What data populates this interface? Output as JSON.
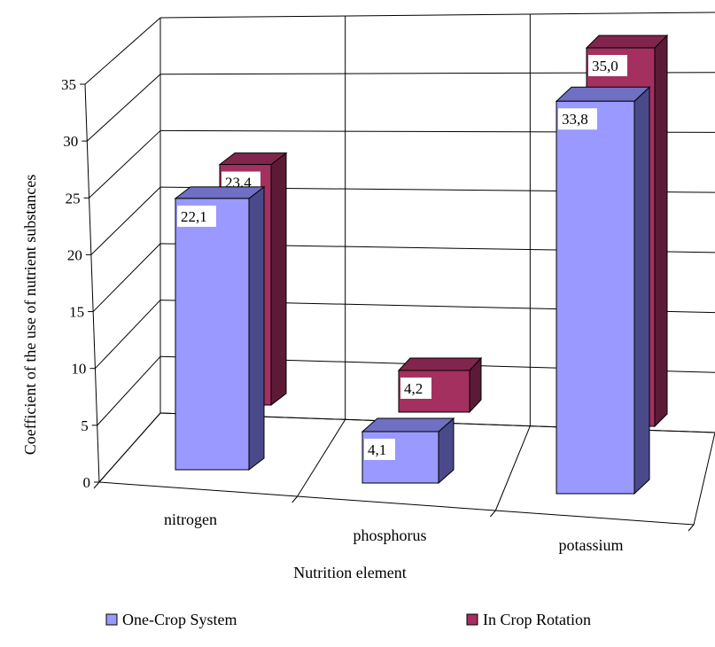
{
  "chart_data": {
    "type": "bar",
    "categories": [
      "nitrogen",
      "phosphorus",
      "potassium"
    ],
    "series": [
      {
        "name": "One-Crop System",
        "values": [
          22.1,
          4.1,
          33.8
        ],
        "labels": [
          "22,1",
          "4,1",
          "33,8"
        ]
      },
      {
        "name": "In Crop Rotation",
        "values": [
          23.4,
          4.2,
          35.0
        ],
        "labels": [
          "23,4",
          "4,2",
          "35,0"
        ]
      }
    ],
    "xlabel": "Nutrition element",
    "ylabel": "Coefficient of the use of nutrient substances",
    "ylim": [
      0,
      35
    ],
    "yticks": [
      "0",
      "5",
      "10",
      "15",
      "20",
      "25",
      "30",
      "35"
    ],
    "grid": true,
    "legend": "bottom",
    "projection": "3d"
  },
  "colors": {
    "one_crop": {
      "front": "#9999ff",
      "side": "#4a4a8a",
      "top": "#6f6fc4"
    },
    "rotation": {
      "front": "#a3305f",
      "side": "#5c1a36",
      "top": "#82254c"
    },
    "grid": "#000000"
  }
}
